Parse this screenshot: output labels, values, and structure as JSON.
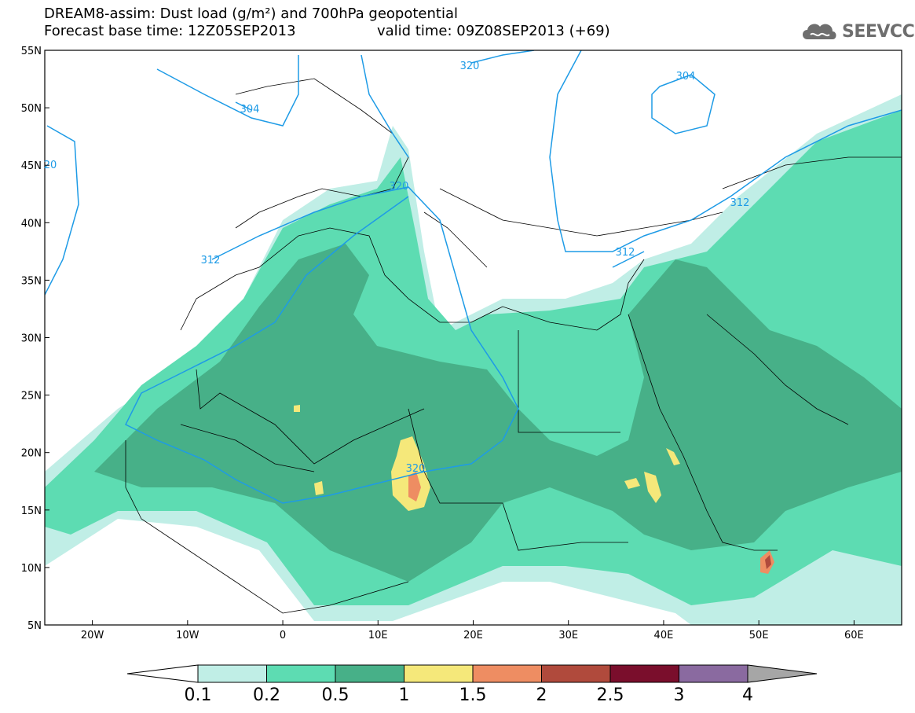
{
  "header": {
    "title": "DREAM8-assim: Dust load (g/m²) and 700hPa geopotential",
    "forecast_base": "Forecast base time: 12Z05SEP2013",
    "valid_time": "valid time: 09Z08SEP2013 (+69)"
  },
  "logo": {
    "text": "SEEVCCC",
    "icon": "cloud-icon"
  },
  "map": {
    "lon_ticks": [
      "20W",
      "10W",
      "0",
      "10E",
      "20E",
      "30E",
      "40E",
      "50E",
      "60E"
    ],
    "lat_ticks": [
      "55N",
      "50N",
      "45N",
      "40N",
      "35N",
      "30N",
      "25N",
      "20N",
      "15N",
      "10N",
      "5N"
    ],
    "contour_labels": [
      "320",
      "304",
      "304",
      "20",
      "320",
      "312",
      "312",
      "312",
      "320"
    ],
    "colors": {
      "dust_0_1": "#c0eee6",
      "dust_0_2": "#5ddcb2",
      "dust_0_5": "#47b088",
      "dust_1": "#f5e87a",
      "dust_1_5": "#ee8d62",
      "geopotential": "#1e9be6"
    }
  },
  "colorbar": {
    "labels": [
      "0.1",
      "0.2",
      "0.5",
      "1",
      "1.5",
      "2",
      "2.5",
      "3",
      "4"
    ],
    "colors": [
      "#c0eee6",
      "#5ddcb2",
      "#47b088",
      "#f5e87a",
      "#ee8d62",
      "#b04a3c",
      "#7a0e2c",
      "#8a6aa0",
      "#a6a6a6"
    ]
  }
}
